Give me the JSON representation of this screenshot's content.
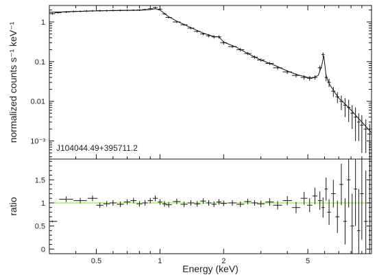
{
  "chart_data": [
    {
      "panel": "top",
      "type": "scatter",
      "ylabel": "normalized counts s⁻¹ keV⁻¹",
      "annotation": "J104044.49+395711.2",
      "x_scale": "log",
      "y_scale": "log",
      "xlim": [
        0.3,
        10
      ],
      "ylim": [
        0.00035,
        2.6
      ],
      "y_ticks": [
        {
          "value": 1,
          "label": "1"
        },
        {
          "value": 0.1,
          "label": "0.1"
        },
        {
          "value": 0.01,
          "label": "0.01"
        },
        {
          "value": 0.001,
          "label": "10⁻³"
        }
      ],
      "series": [
        {
          "kind": "data",
          "style": "crosses",
          "x": [
            0.31,
            0.33,
            0.36,
            0.39,
            0.42,
            0.45,
            0.48,
            0.52,
            0.56,
            0.6,
            0.65,
            0.7,
            0.75,
            0.8,
            0.85,
            0.9,
            0.95,
            1.0,
            1.05,
            1.1,
            1.2,
            1.3,
            1.4,
            1.5,
            1.6,
            1.7,
            1.8,
            1.9,
            2.0,
            2.2,
            2.4,
            2.6,
            2.8,
            3.0,
            3.3,
            3.6,
            4.0,
            4.4,
            4.8,
            5.1,
            5.4,
            5.7,
            5.9,
            6.1,
            6.3,
            6.6,
            6.9,
            7.2,
            7.5,
            7.8,
            8.1,
            8.4,
            8.7,
            9.0,
            9.4,
            9.8
          ],
          "y": [
            1.62,
            1.72,
            1.78,
            1.83,
            1.85,
            1.88,
            1.9,
            1.92,
            1.93,
            1.95,
            1.96,
            1.97,
            1.98,
            2.0,
            2.05,
            2.15,
            2.3,
            2.1,
            1.6,
            1.3,
            1.0,
            0.85,
            0.7,
            0.58,
            0.5,
            0.45,
            0.42,
            0.42,
            0.3,
            0.24,
            0.2,
            0.16,
            0.13,
            0.11,
            0.09,
            0.07,
            0.055,
            0.045,
            0.04,
            0.038,
            0.04,
            0.07,
            0.15,
            0.04,
            0.03,
            0.018,
            0.013,
            0.01,
            0.008,
            0.007,
            0.005,
            0.004,
            0.003,
            0.0025,
            0.002,
            0.0015
          ],
          "yerr": [
            0.1,
            0.1,
            0.1,
            0.1,
            0.1,
            0.1,
            0.1,
            0.1,
            0.1,
            0.1,
            0.1,
            0.1,
            0.1,
            0.1,
            0.1,
            0.1,
            0.12,
            0.1,
            0.08,
            0.07,
            0.06,
            0.05,
            0.05,
            0.04,
            0.04,
            0.04,
            0.04,
            0.04,
            0.03,
            0.02,
            0.02,
            0.015,
            0.012,
            0.01,
            0.008,
            0.007,
            0.006,
            0.005,
            0.005,
            0.005,
            0.005,
            0.01,
            0.02,
            0.008,
            0.007,
            0.005,
            0.004,
            0.004,
            0.004,
            0.004,
            0.003,
            0.003,
            0.002,
            0.002,
            0.0015,
            0.0012
          ]
        },
        {
          "kind": "model",
          "style": "line",
          "x": [
            0.3,
            0.35,
            0.4,
            0.5,
            0.6,
            0.7,
            0.8,
            0.9,
            0.95,
            1.0,
            1.1,
            1.2,
            1.4,
            1.6,
            1.8,
            1.9,
            2.0,
            2.3,
            2.6,
            3.0,
            3.5,
            4.0,
            4.5,
            5.0,
            5.3,
            5.6,
            5.8,
            5.95,
            6.1,
            6.3,
            6.6,
            7.0,
            7.5,
            8.0,
            8.5,
            9.0,
            9.5,
            10.0
          ],
          "y": [
            1.75,
            1.8,
            1.85,
            1.9,
            1.93,
            1.95,
            1.97,
            2.05,
            2.15,
            2.0,
            1.35,
            1.05,
            0.72,
            0.52,
            0.43,
            0.42,
            0.31,
            0.23,
            0.16,
            0.11,
            0.08,
            0.058,
            0.046,
            0.04,
            0.039,
            0.045,
            0.075,
            0.14,
            0.045,
            0.028,
            0.019,
            0.012,
            0.0085,
            0.006,
            0.0042,
            0.003,
            0.0022,
            0.0016
          ]
        }
      ]
    },
    {
      "panel": "bottom",
      "type": "scatter",
      "xlabel": "Energy (keV)",
      "ylabel": "ratio",
      "x_scale": "log",
      "xlim": [
        0.3,
        10
      ],
      "ylim": [
        -0.1,
        1.95
      ],
      "x_ticks": [
        {
          "value": 0.5,
          "label": "0.5"
        },
        {
          "value": 1,
          "label": "1"
        },
        {
          "value": 2,
          "label": "2"
        },
        {
          "value": 5,
          "label": "5"
        }
      ],
      "y_ticks": [
        {
          "value": 0,
          "label": "0"
        },
        {
          "value": 0.5,
          "label": "0.5"
        },
        {
          "value": 1,
          "label": "1"
        },
        {
          "value": 1.5,
          "label": "1.5"
        }
      ],
      "reference_line": {
        "y": 1,
        "color": "#88e02a"
      },
      "series": [
        {
          "kind": "data",
          "style": "crosses",
          "x": [
            0.31,
            0.36,
            0.42,
            0.48,
            0.52,
            0.56,
            0.6,
            0.65,
            0.7,
            0.75,
            0.8,
            0.85,
            0.9,
            0.95,
            1.0,
            1.05,
            1.1,
            1.2,
            1.3,
            1.4,
            1.5,
            1.6,
            1.7,
            1.8,
            1.9,
            2.0,
            2.2,
            2.4,
            2.6,
            2.8,
            3.0,
            3.3,
            3.6,
            4.0,
            4.4,
            4.8,
            5.1,
            5.4,
            5.7,
            5.9,
            6.1,
            6.3,
            6.6,
            6.9,
            7.2,
            7.5,
            7.8,
            8.1,
            8.4,
            8.7,
            9.0,
            9.4,
            9.8
          ],
          "y": [
            0.6,
            1.08,
            1.05,
            1.1,
            0.95,
            0.98,
            1.0,
            0.97,
            1.02,
            1.05,
            0.98,
            1.0,
            1.05,
            1.1,
            1.02,
            0.98,
            0.96,
            1.03,
            0.97,
            1.0,
            0.98,
            1.04,
            1.0,
            0.97,
            1.02,
            0.99,
            1.0,
            0.97,
            1.03,
            1.0,
            0.98,
            1.02,
            0.95,
            1.05,
            0.9,
            1.1,
            0.95,
            1.15,
            1.05,
            0.9,
            1.3,
            0.8,
            1.2,
            0.7,
            1.4,
            0.6,
            1.5,
            0.5,
            1.3,
            0.4,
            1.2,
            0.6,
            1.0
          ],
          "yerr": [
            0.02,
            0.06,
            0.06,
            0.06,
            0.06,
            0.06,
            0.06,
            0.06,
            0.06,
            0.06,
            0.06,
            0.06,
            0.06,
            0.06,
            0.06,
            0.06,
            0.06,
            0.06,
            0.06,
            0.06,
            0.06,
            0.06,
            0.06,
            0.06,
            0.06,
            0.06,
            0.06,
            0.06,
            0.06,
            0.06,
            0.07,
            0.08,
            0.09,
            0.1,
            0.12,
            0.14,
            0.15,
            0.18,
            0.2,
            0.22,
            0.25,
            0.28,
            0.3,
            0.35,
            0.45,
            0.5,
            0.6,
            0.7,
            0.8,
            0.9,
            1.0,
            1.1,
            1.2
          ]
        }
      ]
    }
  ]
}
